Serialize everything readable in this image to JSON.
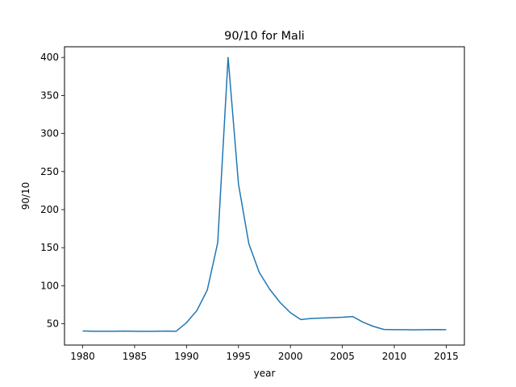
{
  "chart_data": {
    "type": "line",
    "title": "90/10 for Mali",
    "xlabel": "year",
    "ylabel": "90/10",
    "xlim": [
      1978.25,
      2016.75
    ],
    "ylim": [
      22,
      414
    ],
    "xticks": [
      1980,
      1985,
      1990,
      1995,
      2000,
      2005,
      2010,
      2015
    ],
    "yticks": [
      50,
      100,
      150,
      200,
      250,
      300,
      350,
      400
    ],
    "grid": false,
    "line_color": "#1f77b4",
    "series": [
      {
        "x": [
          1980,
          1981,
          1982,
          1983,
          1984,
          1985,
          1986,
          1987,
          1988,
          1989,
          1990,
          1991,
          1992,
          1993,
          1994,
          1995,
          1996,
          1997,
          1998,
          1999,
          2000,
          2001,
          2002,
          2003,
          2004,
          2005,
          2006,
          2007,
          2008,
          2009,
          2010,
          2011,
          2012,
          2013,
          2014,
          2015
        ],
        "y": [
          40.5,
          40.2,
          40.1,
          40.1,
          40.4,
          40.1,
          40.0,
          40.2,
          40.4,
          40.2,
          51.5,
          67.5,
          94.5,
          156.5,
          400,
          233.5,
          155,
          117.5,
          95.5,
          78,
          64.5,
          55.5,
          57,
          57.5,
          58,
          58.5,
          59.5,
          52,
          46.5,
          42.5,
          42.3,
          42.2,
          42.0,
          42.2,
          42.4,
          42.3
        ]
      }
    ]
  }
}
